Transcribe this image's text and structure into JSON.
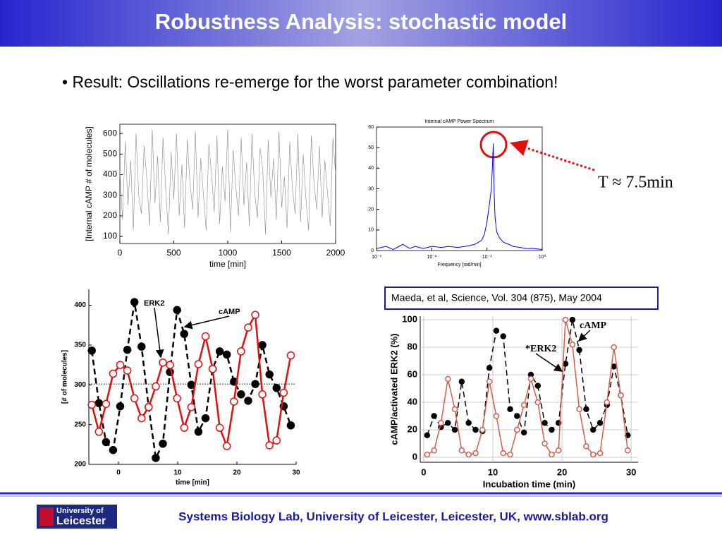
{
  "header": {
    "title": "Robustness Analysis: stochastic model"
  },
  "bullet": "• Result: Oscillations re-emerge for the worst parameter combination!",
  "annotation": "T ≈ 7.5min",
  "citation": "Maeda, et al, Science, Vol. 304 (875), May 2004",
  "logo": [
    "University of",
    "Leicester"
  ],
  "footer": "Systems Biology Lab, University of Leicester, Leicester, UK, www.sblab.org",
  "chart_data": [
    {
      "type": "line",
      "ylabel": "[Internal cAMP # of molecules]",
      "xlabel": "time [min]",
      "xlim": [
        0,
        2000
      ],
      "xticks": [
        0,
        500,
        1000,
        1500,
        2000
      ],
      "ylim": [
        66,
        645
      ],
      "yticks": [
        100,
        200,
        300,
        400,
        500,
        600
      ],
      "frame": true,
      "x": [
        0,
        25,
        50,
        75,
        100,
        125,
        150,
        175,
        200,
        225,
        250,
        275,
        300,
        325,
        350,
        375,
        400,
        425,
        450,
        475,
        500,
        525,
        550,
        575,
        600,
        625,
        650,
        675,
        700,
        725,
        750,
        775,
        800,
        825,
        850,
        875,
        900,
        925,
        950,
        975,
        1000,
        1025,
        1050,
        1075,
        1100,
        1125,
        1150,
        1175,
        1200,
        1225,
        1250,
        1275,
        1300,
        1325,
        1350,
        1375,
        1400,
        1425,
        1450,
        1475,
        1500,
        1525,
        1550,
        1575,
        1600,
        1625,
        1650,
        1675,
        1700,
        1725,
        1750,
        1775,
        1800,
        1825,
        1850,
        1875,
        1900,
        1925,
        1950,
        1975,
        2000
      ],
      "series": [
        {
          "color": "#8a8a8a",
          "values": [
            420,
            180,
            560,
            250,
            470,
            130,
            600,
            300,
            210,
            540,
            380,
            150,
            620,
            260,
            490,
            170,
            580,
            330,
            110,
            510,
            280,
            600,
            200,
            450,
            140,
            570,
            360,
            230,
            610,
            190,
            480,
            300,
            130,
            550,
            400,
            220,
            590,
            160,
            440,
            270,
            620,
            120,
            520,
            340,
            200,
            580,
            250,
            460,
            150,
            600,
            310,
            190,
            530,
            420,
            110,
            570,
            290,
            480,
            180,
            610,
            240,
            390,
            140,
            560,
            330,
            210,
            600,
            170,
            500,
            280,
            130,
            590,
            360,
            230,
            540,
            190,
            470,
            310,
            150,
            580,
            400
          ]
        }
      ]
    },
    {
      "type": "line",
      "title": "Internal cAMP Power Spectrum",
      "xlabel": "Frequency [rad/min]",
      "xscale": "log",
      "xlim": [
        0.001,
        1
      ],
      "xticks": [
        {
          "value": 0.001,
          "label": "10⁻³"
        },
        {
          "value": 0.01,
          "label": "10⁻²"
        },
        {
          "value": 0.1,
          "label": "10⁻¹"
        },
        {
          "value": 1,
          "label": "10⁰"
        }
      ],
      "ylim": [
        0,
        60
      ],
      "yticks": [
        0,
        10,
        20,
        30,
        40,
        50,
        60
      ],
      "frame": true,
      "x": [
        0.001,
        0.0015,
        0.002,
        0.003,
        0.004,
        0.005,
        0.007,
        0.01,
        0.015,
        0.02,
        0.03,
        0.04,
        0.05,
        0.06,
        0.07,
        0.08,
        0.09,
        0.1,
        0.11,
        0.12,
        0.125,
        0.13,
        0.135,
        0.14,
        0.15,
        0.17,
        0.2,
        0.25,
        0.3,
        0.4,
        0.5,
        0.7,
        1
      ],
      "series": [
        {
          "color": "#0000ff",
          "values": [
            1,
            2,
            0.5,
            3,
            1,
            2,
            1,
            2,
            1.5,
            2,
            1.5,
            2,
            2.5,
            3,
            4,
            5,
            8,
            14,
            22,
            30,
            40,
            52,
            28,
            16,
            9,
            6,
            4,
            3,
            2,
            1.5,
            1,
            1,
            0.5
          ]
        }
      ]
    },
    {
      "type": "line",
      "ylabel": "[# of molecules]",
      "xlabel": "time [min]",
      "annotations": [
        "ERK2",
        "cAMP"
      ],
      "xlim": [
        -5,
        30
      ],
      "xticks": [
        0,
        10,
        20,
        30
      ],
      "ylim": [
        200,
        420
      ],
      "yticks": [
        200,
        250,
        300,
        350,
        400
      ],
      "hline": 301,
      "x": [
        -4.5,
        -3.3,
        -2.1,
        -0.9,
        0.3,
        1.5,
        2.7,
        3.9,
        5.1,
        6.3,
        7.5,
        8.7,
        9.9,
        11.1,
        12.3,
        13.5,
        14.7,
        15.9,
        17.1,
        18.3,
        19.5,
        20.7,
        21.9,
        23.1,
        24.3,
        25.5,
        26.7,
        27.9,
        29.1
      ],
      "series": [
        {
          "name": "ERK2",
          "color": "#000000",
          "dash": true,
          "marker": "filled",
          "values": [
            343,
            277,
            228,
            218,
            273,
            344,
            404,
            348,
            272,
            208,
            226,
            316,
            394,
            364,
            300,
            241,
            258,
            320,
            342,
            338,
            304,
            288,
            280,
            301,
            350,
            313,
            296,
            273,
            249
          ]
        },
        {
          "name": "cAMP",
          "color": "#e01010",
          "dash": false,
          "marker": "open",
          "values": [
            275,
            241,
            276,
            314,
            325,
            318,
            283,
            258,
            272,
            298,
            328,
            325,
            283,
            246,
            272,
            326,
            361,
            320,
            246,
            223,
            279,
            342,
            372,
            388,
            288,
            224,
            230,
            290,
            337
          ]
        }
      ]
    },
    {
      "type": "line",
      "ylabel": "cAMP/activated ERK2 (%)",
      "xlabel": "Incubation time (min)",
      "annotations": [
        "cAMP",
        "*ERK2"
      ],
      "grid": true,
      "xlim": [
        -0.5,
        31
      ],
      "xticks": [
        0,
        10,
        20,
        30
      ],
      "ylim": [
        -3.6,
        102.6
      ],
      "yticks": [
        0,
        20,
        40,
        60,
        80,
        100
      ],
      "x": [
        0.5,
        1.5,
        2.5,
        3.5,
        4.5,
        5.5,
        6.5,
        7.5,
        8.5,
        9.5,
        10.5,
        11.5,
        12.5,
        13.5,
        14.5,
        15.5,
        16.5,
        17.5,
        18.5,
        19.5,
        20.5,
        21.5,
        22.5,
        23.5,
        24.5,
        25.5,
        26.5,
        27.5,
        28.5,
        29.5
      ],
      "series": [
        {
          "name": "ERK2",
          "color": "#000000",
          "dash": true,
          "marker": "filled",
          "values": [
            16,
            30,
            22,
            25,
            20,
            55,
            25,
            20,
            19,
            65,
            92,
            88,
            35,
            30,
            18,
            60,
            52,
            25,
            20,
            25,
            68,
            100,
            78,
            35,
            20,
            25,
            38,
            66,
            45,
            16
          ]
        },
        {
          "name": "cAMP",
          "color": "#d0604a",
          "dash": false,
          "marker": "open",
          "values": [
            2,
            5,
            25,
            57,
            35,
            5,
            2,
            3,
            20,
            55,
            30,
            3,
            2,
            20,
            38,
            57,
            40,
            10,
            2,
            5,
            100,
            82,
            35,
            8,
            2,
            3,
            40,
            80,
            45,
            5
          ]
        }
      ]
    }
  ]
}
